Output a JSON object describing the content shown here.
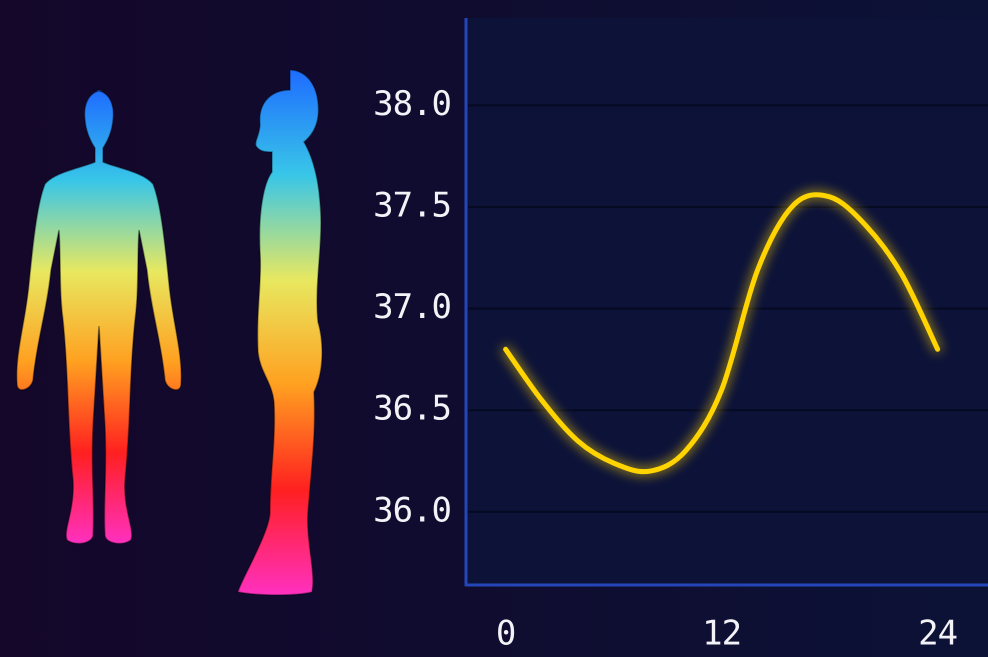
{
  "chart_data": {
    "type": "line",
    "x": [
      0,
      2,
      4,
      6,
      8,
      10,
      12,
      14,
      16,
      18,
      20,
      22,
      24
    ],
    "series": [
      {
        "color": "#ffd400",
        "values": [
          36.8,
          36.55,
          36.35,
          36.24,
          36.2,
          36.3,
          36.6,
          37.19,
          37.51,
          37.55,
          37.41,
          37.17,
          36.8
        ]
      }
    ],
    "xlim": [
      -2.2,
      26.8
    ],
    "xticks": [
      0,
      12,
      24
    ],
    "ylim": [
      35.64,
      38.43
    ],
    "yticks": [
      {
        "value": 36,
        "label": "36.0"
      },
      {
        "value": 36.5,
        "label": "36.5"
      },
      {
        "value": 37,
        "label": "37.0"
      },
      {
        "value": 37.5,
        "label": "37.5"
      },
      {
        "value": 38,
        "label": "38.0"
      }
    ],
    "grid": true
  }
}
